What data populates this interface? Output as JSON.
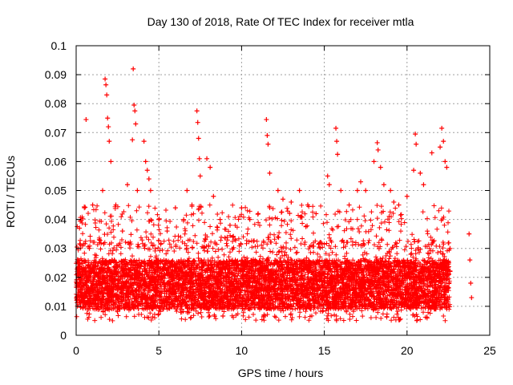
{
  "chart_data": {
    "type": "scatter",
    "title": "Day 130 of 2018, Rate Of TEC Index for receiver mtla",
    "xlabel": "GPS time / hours",
    "ylabel": "ROTI / TECUs",
    "xlim": [
      0,
      25
    ],
    "ylim": [
      0,
      0.1
    ],
    "x_ticks": [
      0,
      5,
      10,
      15,
      20,
      25
    ],
    "x_tick_labels": [
      "0",
      "5",
      "10",
      "15",
      "20",
      "25"
    ],
    "y_ticks": [
      0,
      0.01,
      0.02,
      0.03,
      0.04,
      0.05,
      0.06,
      0.07,
      0.08,
      0.09,
      0.1
    ],
    "y_tick_labels": [
      "0",
      "0.01",
      "0.02",
      "0.03",
      "0.04",
      "0.05",
      "0.06",
      "0.07",
      "0.08",
      "0.09",
      "0.1"
    ],
    "grid": true,
    "marker": "+",
    "series": [
      {
        "name": "ROTI",
        "color": "#ff0000",
        "notes": "Dense band of points between ~0.005 and ~0.03 TECU across 0-22.6 h; sparse points near 23.8 h.",
        "points": [
          [
            0.1,
            0.014
          ],
          [
            0.2,
            0.037
          ],
          [
            0.3,
            0.02
          ],
          [
            0.5,
            0.012
          ],
          [
            0.6,
            0.0745
          ],
          [
            0.8,
            0.03
          ],
          [
            1.0,
            0.045
          ],
          [
            1.2,
            0.025
          ],
          [
            1.4,
            0.033
          ],
          [
            1.6,
            0.05
          ],
          [
            1.75,
            0.0885
          ],
          [
            1.8,
            0.0865
          ],
          [
            1.85,
            0.083
          ],
          [
            1.9,
            0.075
          ],
          [
            1.95,
            0.072
          ],
          [
            2.0,
            0.067
          ],
          [
            2.1,
            0.06
          ],
          [
            2.4,
            0.045
          ],
          [
            2.8,
            0.036
          ],
          [
            3.1,
            0.052
          ],
          [
            3.4,
            0.0675
          ],
          [
            3.45,
            0.092
          ],
          [
            3.5,
            0.0795
          ],
          [
            3.55,
            0.0775
          ],
          [
            3.6,
            0.073
          ],
          [
            3.7,
            0.05
          ],
          [
            4.1,
            0.067
          ],
          [
            4.2,
            0.06
          ],
          [
            4.3,
            0.057
          ],
          [
            4.4,
            0.054
          ],
          [
            4.5,
            0.05
          ],
          [
            5.0,
            0.04
          ],
          [
            5.5,
            0.036
          ],
          [
            6.0,
            0.044
          ],
          [
            6.5,
            0.04
          ],
          [
            6.7,
            0.05
          ],
          [
            7.0,
            0.045
          ],
          [
            7.3,
            0.0775
          ],
          [
            7.35,
            0.0735
          ],
          [
            7.4,
            0.068
          ],
          [
            7.45,
            0.061
          ],
          [
            7.5,
            0.055
          ],
          [
            7.9,
            0.061
          ],
          [
            8.1,
            0.058
          ],
          [
            8.3,
            0.048
          ],
          [
            8.7,
            0.04
          ],
          [
            9.3,
            0.038
          ],
          [
            10.0,
            0.044
          ],
          [
            10.5,
            0.04
          ],
          [
            11.0,
            0.042
          ],
          [
            11.5,
            0.0745
          ],
          [
            11.55,
            0.069
          ],
          [
            11.6,
            0.066
          ],
          [
            11.7,
            0.056
          ],
          [
            12.2,
            0.05
          ],
          [
            12.5,
            0.047
          ],
          [
            13.0,
            0.046
          ],
          [
            13.5,
            0.05
          ],
          [
            14.0,
            0.045
          ],
          [
            14.5,
            0.042
          ],
          [
            15.2,
            0.055
          ],
          [
            15.3,
            0.052
          ],
          [
            15.7,
            0.0715
          ],
          [
            15.75,
            0.067
          ],
          [
            15.8,
            0.0625
          ],
          [
            16.0,
            0.05
          ],
          [
            16.5,
            0.045
          ],
          [
            17.0,
            0.05
          ],
          [
            17.2,
            0.053
          ],
          [
            17.5,
            0.05
          ],
          [
            18.0,
            0.06
          ],
          [
            18.2,
            0.0665
          ],
          [
            18.25,
            0.064
          ],
          [
            18.4,
            0.058
          ],
          [
            18.6,
            0.052
          ],
          [
            19.0,
            0.05
          ],
          [
            19.2,
            0.046
          ],
          [
            19.5,
            0.045
          ],
          [
            20.0,
            0.048
          ],
          [
            20.4,
            0.057
          ],
          [
            20.5,
            0.0695
          ],
          [
            20.55,
            0.066
          ],
          [
            20.8,
            0.056
          ],
          [
            21.0,
            0.052
          ],
          [
            21.5,
            0.063
          ],
          [
            22.0,
            0.065
          ],
          [
            22.1,
            0.0715
          ],
          [
            22.2,
            0.067
          ],
          [
            22.3,
            0.06
          ],
          [
            22.4,
            0.058
          ],
          [
            22.6,
            0.03
          ],
          [
            23.75,
            0.035
          ],
          [
            23.8,
            0.026
          ],
          [
            23.85,
            0.018
          ],
          [
            23.9,
            0.013
          ]
        ]
      }
    ]
  }
}
